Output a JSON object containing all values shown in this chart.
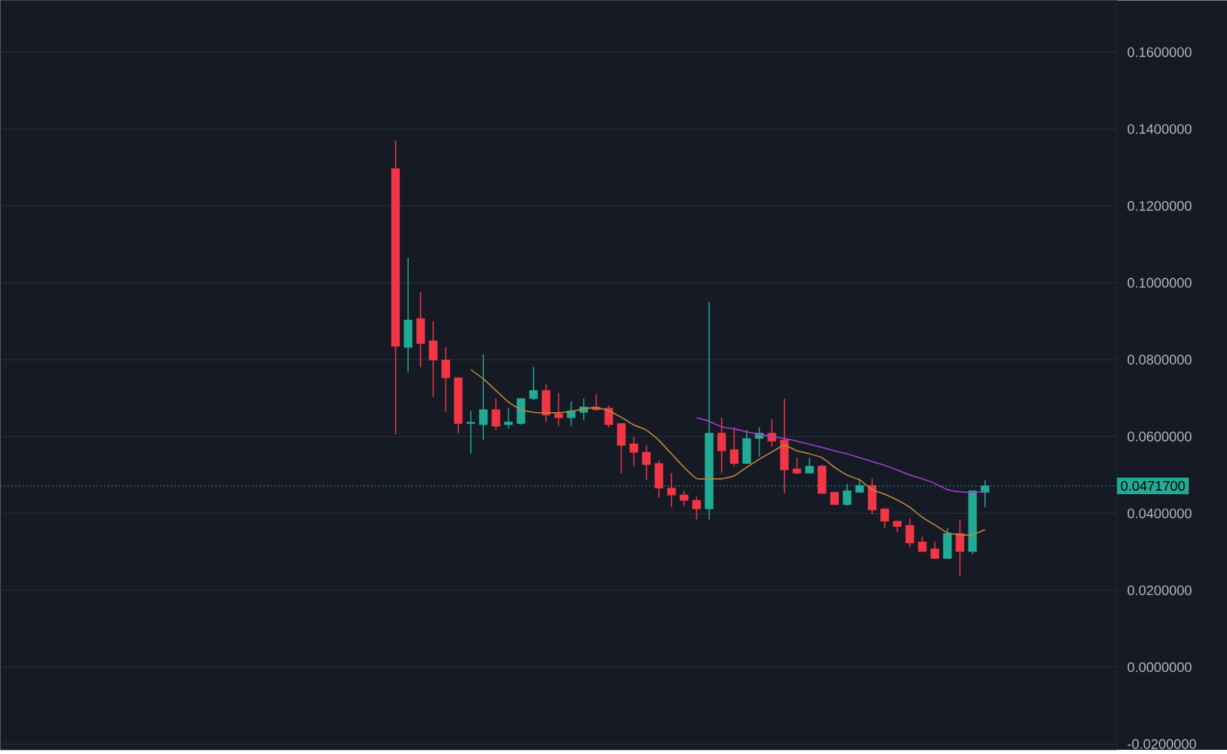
{
  "chart_data": {
    "type": "candlestick",
    "categories": [
      null,
      null,
      null,
      null,
      null,
      null,
      null,
      null,
      null,
      null,
      null,
      null,
      null,
      null,
      null,
      null,
      null,
      null,
      null,
      null,
      null,
      null,
      null,
      null,
      null,
      null,
      null,
      null,
      null,
      null,
      null,
      null,
      null,
      null,
      null,
      null,
      null,
      null,
      null,
      null,
      null,
      null,
      null,
      null,
      null,
      null,
      null,
      null,
      null,
      null,
      null,
      null,
      null,
      null,
      null,
      null,
      null,
      null,
      null,
      null,
      null,
      null,
      null,
      null,
      null,
      null,
      null,
      null,
      null,
      null,
      null,
      null,
      null,
      null,
      null,
      null,
      null,
      null,
      null,
      null,
      null,
      null,
      null,
      null,
      null,
      null,
      null,
      null,
      null
    ],
    "ohlc": [
      null,
      null,
      null,
      null,
      null,
      null,
      null,
      null,
      null,
      null,
      null,
      null,
      null,
      null,
      null,
      null,
      null,
      null,
      null,
      null,
      null,
      null,
      null,
      null,
      null,
      null,
      null,
      null,
      null,
      null,
      null,
      [
        0.1297,
        0.137,
        0.0606,
        0.0835
      ],
      [
        0.0832,
        0.1065,
        0.0767,
        0.0903
      ],
      [
        0.0907,
        0.0975,
        0.0781,
        0.0842
      ],
      [
        0.0849,
        0.09,
        0.0703,
        0.0799
      ],
      [
        0.0799,
        0.0832,
        0.0663,
        0.0753
      ],
      [
        0.0753,
        0.0753,
        0.0609,
        0.0634
      ],
      [
        0.0634,
        0.0667,
        0.0556,
        0.0637
      ],
      [
        0.0631,
        0.0814,
        0.0591,
        0.067
      ],
      [
        0.067,
        0.0699,
        0.0617,
        0.0627
      ],
      [
        0.0631,
        0.0674,
        0.062,
        0.0638
      ],
      [
        0.0634,
        0.07,
        0.0631,
        0.0699
      ],
      [
        0.0699,
        0.0781,
        0.0695,
        0.072
      ],
      [
        0.072,
        0.0735,
        0.0638,
        0.0656
      ],
      [
        0.0659,
        0.0713,
        0.0627,
        0.0649
      ],
      [
        0.0649,
        0.0692,
        0.0627,
        0.0667
      ],
      [
        0.0663,
        0.0699,
        0.0642,
        0.0677
      ],
      [
        0.0677,
        0.071,
        0.0667,
        0.067
      ],
      [
        0.0674,
        0.0681,
        0.0624,
        0.0631
      ],
      [
        0.0634,
        0.0634,
        0.0505,
        0.0577
      ],
      [
        0.0581,
        0.0599,
        0.0523,
        0.0559
      ],
      [
        0.0559,
        0.0577,
        0.0487,
        0.0527
      ],
      [
        0.053,
        0.0538,
        0.0441,
        0.0466
      ],
      [
        0.0466,
        0.0505,
        0.0416,
        0.0448
      ],
      [
        0.0448,
        0.0459,
        0.0419,
        0.0434
      ],
      [
        0.0434,
        0.0444,
        0.0384,
        0.0412
      ],
      [
        0.0412,
        0.095,
        0.0384,
        0.0609
      ],
      [
        0.0609,
        0.0649,
        0.0505,
        0.0563
      ],
      [
        0.0566,
        0.0624,
        0.0523,
        0.053
      ],
      [
        0.053,
        0.0617,
        0.053,
        0.0595
      ],
      [
        0.0595,
        0.0624,
        0.0548,
        0.0609
      ],
      [
        0.0609,
        0.0645,
        0.0573,
        0.0588
      ],
      [
        0.0591,
        0.0699,
        0.0452,
        0.0513
      ],
      [
        0.0516,
        0.0545,
        0.0502,
        0.0505
      ],
      [
        0.0505,
        0.0545,
        0.0505,
        0.0523
      ],
      [
        0.0523,
        0.0527,
        0.0452,
        0.0452
      ],
      [
        0.0455,
        0.0455,
        0.0423,
        0.0423
      ],
      [
        0.0423,
        0.0477,
        0.042,
        0.0459
      ],
      [
        0.0455,
        0.0491,
        0.0455,
        0.0473
      ],
      [
        0.0473,
        0.0491,
        0.0398,
        0.0409
      ],
      [
        0.0412,
        0.0412,
        0.0362,
        0.038
      ],
      [
        0.038,
        0.038,
        0.0351,
        0.0366
      ],
      [
        0.0369,
        0.0387,
        0.0312,
        0.0323
      ],
      [
        0.0326,
        0.034,
        0.0301,
        0.0301
      ],
      [
        0.0308,
        0.0326,
        0.0283,
        0.0283
      ],
      [
        0.0283,
        0.0362,
        0.0283,
        0.0348
      ],
      [
        0.0348,
        0.0384,
        0.0237,
        0.0301
      ],
      [
        0.0301,
        0.0459,
        0.0294,
        0.0459
      ],
      [
        0.0455,
        0.0487,
        0.0416,
        0.04717
      ],
      null,
      null,
      null,
      null,
      null,
      null,
      null,
      null,
      null,
      null
    ],
    "colors": [
      null,
      null,
      null,
      null,
      null,
      null,
      null,
      null,
      null,
      null,
      null,
      null,
      null,
      null,
      null,
      null,
      null,
      null,
      null,
      null,
      null,
      null,
      null,
      null,
      null,
      null,
      null,
      null,
      null,
      null,
      null,
      "#f23645",
      "#22ab94",
      "#f23645",
      "#f23645",
      "#f23645",
      "#f23645",
      "#22ab94",
      "#22ab94",
      "#f23645",
      "#22ab94",
      "#22ab94",
      "#22ab94",
      "#f23645",
      "#f23645",
      "#22ab94",
      "#22ab94",
      "#f23645",
      "#f23645",
      "#f23645",
      "#f23645",
      "#f23645",
      "#f23645",
      "#f23645",
      "#f23645",
      "#f23645",
      "#22ab94",
      "#f23645",
      "#f23645",
      "#22ab94",
      "#22ab94",
      "#f23645",
      "#f23645",
      "#f23645",
      "#22ab94",
      "#f23645",
      "#f23645",
      "#22ab94",
      "#22ab94",
      "#f23645",
      "#f23645",
      "#f23645",
      "#f23645",
      "#f23645",
      "#f23645",
      "#22ab94",
      "#f23645",
      "#22ab94",
      "#22ab94",
      null,
      null,
      null,
      null,
      null,
      null,
      null,
      null,
      null,
      null
    ],
    "series": [
      {
        "type": "line",
        "color": "#b8863b",
        "values": [
          null,
          null,
          null,
          null,
          null,
          null,
          null,
          null,
          null,
          null,
          null,
          null,
          null,
          null,
          null,
          null,
          null,
          null,
          null,
          null,
          null,
          null,
          null,
          null,
          null,
          null,
          null,
          null,
          null,
          null,
          null,
          null,
          null,
          null,
          null,
          null,
          null,
          0.0774,
          0.075,
          0.072,
          0.069,
          0.067,
          0.0663,
          0.0662,
          0.0662,
          0.0665,
          0.0672,
          0.0675,
          0.0667,
          0.065,
          0.063,
          0.0617,
          0.059,
          0.0555,
          0.052,
          0.0491,
          0.049,
          0.049,
          0.0498,
          0.052,
          0.0541,
          0.056,
          0.0577,
          0.0563,
          0.0555,
          0.0545,
          0.052,
          0.05,
          0.0487,
          0.0462,
          0.045,
          0.0435,
          0.0416,
          0.039,
          0.037,
          0.035,
          0.0344,
          0.0345,
          0.0358,
          null,
          null,
          null,
          null,
          null,
          null,
          null,
          null,
          null,
          null
        ]
      },
      {
        "type": "line",
        "color": "#9c3fc8",
        "values": [
          null,
          null,
          null,
          null,
          null,
          null,
          null,
          null,
          null,
          null,
          null,
          null,
          null,
          null,
          null,
          null,
          null,
          null,
          null,
          null,
          null,
          null,
          null,
          null,
          null,
          null,
          null,
          null,
          null,
          null,
          null,
          null,
          null,
          null,
          null,
          null,
          null,
          null,
          null,
          null,
          null,
          null,
          null,
          null,
          null,
          null,
          null,
          null,
          null,
          null,
          null,
          null,
          null,
          null,
          null,
          0.0649,
          0.064,
          0.0625,
          0.062,
          0.0612,
          0.0606,
          0.06,
          0.0595,
          0.0588,
          0.058,
          0.0572,
          0.0563,
          0.0555,
          0.0545,
          0.0535,
          0.0525,
          0.0513,
          0.05,
          0.049,
          0.0478,
          0.0462,
          0.0456,
          0.0455,
          0.0456,
          null,
          null,
          null,
          null,
          null,
          null,
          null,
          null,
          null,
          null
        ]
      }
    ],
    "ylim": [
      -0.0215,
      0.1735
    ],
    "yticks": [
      {
        "value": -0.02,
        "label": "-0.0200000"
      },
      {
        "value": 0,
        "label": "0.0000000"
      },
      {
        "value": 0.02,
        "label": "0.0200000"
      },
      {
        "value": 0.04,
        "label": "0.0400000"
      },
      {
        "value": 0.06,
        "label": "0.0600000"
      },
      {
        "value": 0.08,
        "label": "0.0800000"
      },
      {
        "value": 0.1,
        "label": "0.1000000"
      },
      {
        "value": 0.12,
        "label": "0.1200000"
      },
      {
        "value": 0.14,
        "label": "0.1400000"
      },
      {
        "value": 0.16,
        "label": "0.1600000"
      }
    ],
    "ref_lines": [
      {
        "axis": "y",
        "value": 0.04717,
        "label": "0.0471700",
        "color": "#22ab94",
        "line_style": "dotted"
      }
    ],
    "grid": "y",
    "tick_labels": "y"
  }
}
